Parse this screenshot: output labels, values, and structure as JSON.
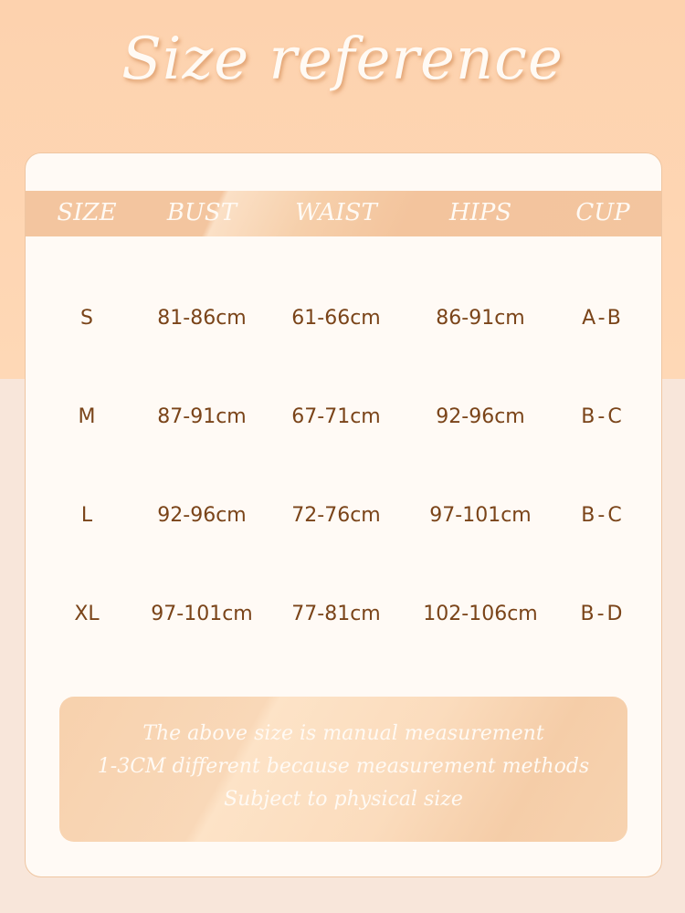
{
  "title": "Size reference",
  "table": {
    "headers": [
      "SIZE",
      "BUST",
      "WAIST",
      "HIPS",
      "CUP"
    ],
    "rows": [
      [
        "S",
        "81-86cm",
        "61-66cm",
        "86-91cm",
        "A-B"
      ],
      [
        "M",
        "87-91cm",
        "67-71cm",
        "92-96cm",
        "B-C"
      ],
      [
        "L",
        "92-96cm",
        "72-76cm",
        "97-101cm",
        "B-C"
      ],
      [
        "XL",
        "97-101cm",
        "77-81cm",
        "102-106cm",
        "B-D"
      ]
    ]
  },
  "note": [
    "The above size is manual measurement",
    "1-3CM different because  measurement methods",
    "Subject to physical size"
  ],
  "colors": {
    "accent": "#f3c59f",
    "text": "#7a4419",
    "card": "#fffaf5"
  }
}
